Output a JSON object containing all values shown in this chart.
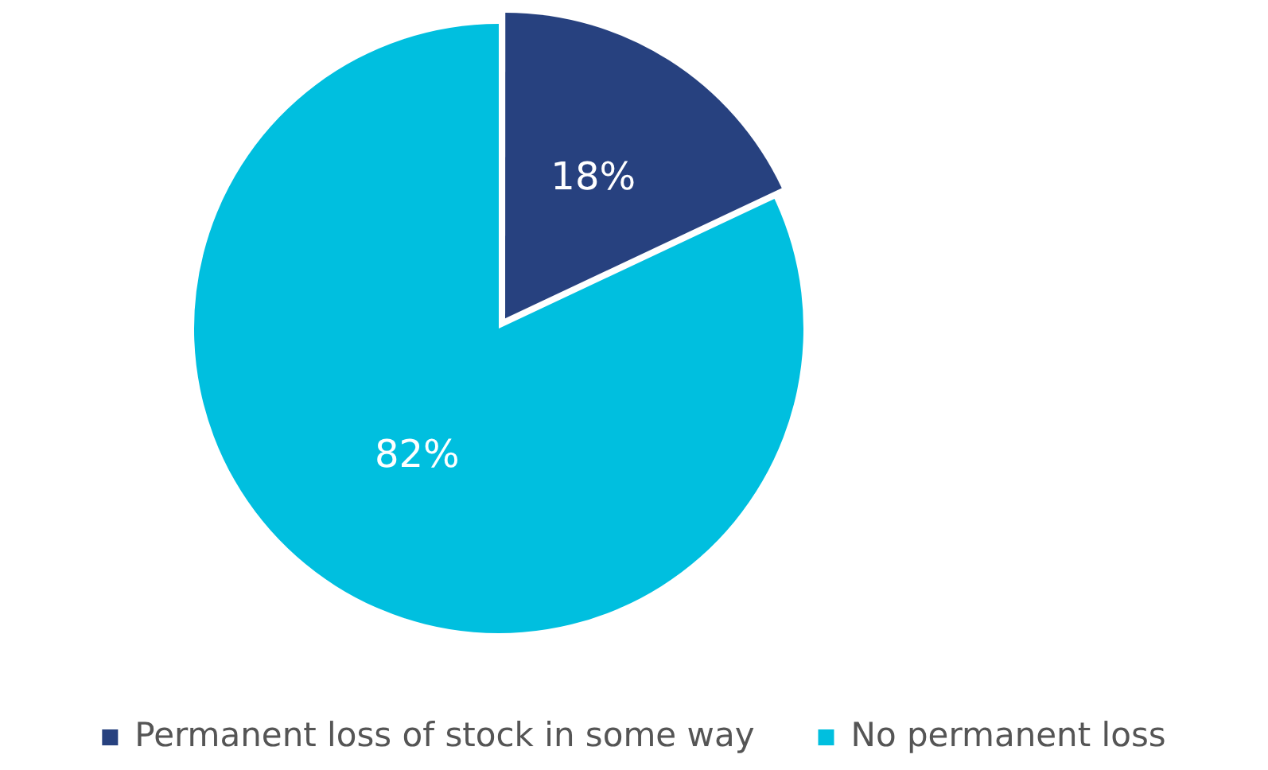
{
  "chart_data": {
    "type": "pie",
    "categories": [
      "Permanent loss of stock in some way",
      "No permanent loss"
    ],
    "values": [
      18,
      82
    ],
    "value_labels": [
      "18%",
      "82%"
    ],
    "colors": [
      "#27417f",
      "#00bfdf"
    ],
    "legend": "bottom"
  }
}
